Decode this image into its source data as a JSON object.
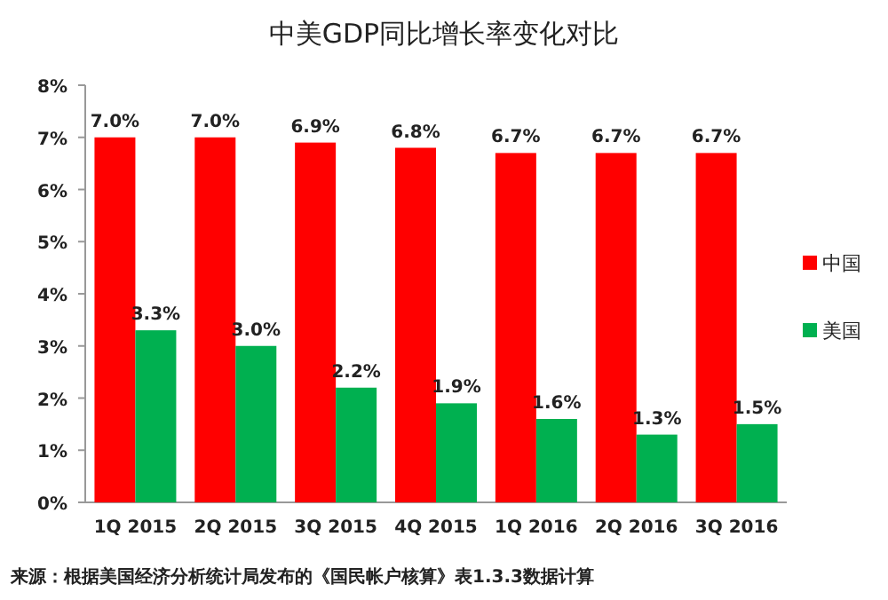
{
  "chart_data": {
    "type": "bar",
    "title": "中美GDP同比增长率变化对比",
    "categories": [
      "1Q 2015",
      "2Q 2015",
      "3Q 2015",
      "4Q 2015",
      "1Q 2016",
      "2Q 2016",
      "3Q 2016"
    ],
    "series": [
      {
        "name": "中国",
        "color": "#ff0000",
        "values": [
          7.0,
          7.0,
          6.9,
          6.8,
          6.7,
          6.7,
          6.7
        ],
        "value_labels": [
          "7.0%",
          "7.0%",
          "6.9%",
          "6.8%",
          "6.7%",
          "6.7%",
          "6.7%"
        ]
      },
      {
        "name": "美国",
        "color": "#00b050",
        "values": [
          3.3,
          3.0,
          2.2,
          1.9,
          1.6,
          1.3,
          1.5
        ],
        "value_labels": [
          "3.3%",
          "3.0%",
          "2.2%",
          "1.9%",
          "1.6%",
          "1.3%",
          "1.5%"
        ]
      }
    ],
    "ylim": [
      0,
      8
    ],
    "yticks": [
      {
        "value": 0,
        "label": "0%"
      },
      {
        "value": 1,
        "label": "1%"
      },
      {
        "value": 2,
        "label": "2%"
      },
      {
        "value": 3,
        "label": "3%"
      },
      {
        "value": 4,
        "label": "4%"
      },
      {
        "value": 5,
        "label": "5%"
      },
      {
        "value": 6,
        "label": "6%"
      },
      {
        "value": 7,
        "label": "7%"
      },
      {
        "value": 8,
        "label": "8%"
      }
    ],
    "grid": false,
    "legend": "right",
    "annotations": [
      "来源：根据美国经济分析统计局发布的《国民帐户核算》表1.3.3数据计算"
    ]
  }
}
